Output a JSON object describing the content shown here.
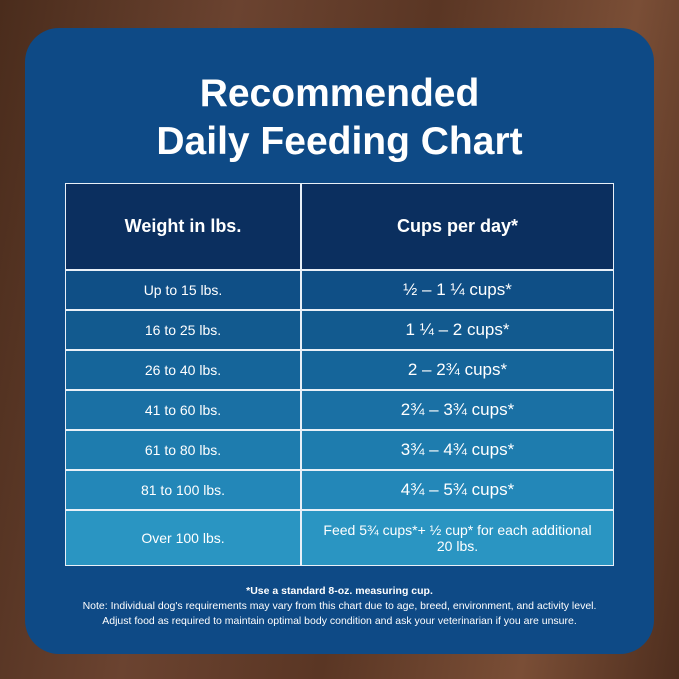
{
  "header": {
    "title_line1": "Recommended",
    "title_line2": "Daily Feeding Chart"
  },
  "table": {
    "columns": [
      "Weight in lbs.",
      "Cups per day*"
    ],
    "rows": [
      [
        "Up to 15 lbs.",
        "½ – 1 ¼ cups*"
      ],
      [
        "16 to 25 lbs.",
        "1 ¼ –  2 cups*"
      ],
      [
        "26 to 40 lbs.",
        "2 – 2¾ cups*"
      ],
      [
        "41 to 60 lbs.",
        "2¾ – 3¾ cups*"
      ],
      [
        "61 to 80 lbs.",
        "3¾ – 4¾ cups*"
      ],
      [
        "81 to 100 lbs.",
        "4¾ – 5¾ cups*"
      ],
      [
        "Over 100 lbs.",
        "Feed 5¾ cups*+ ½ cup* for each additional 20 lbs."
      ]
    ]
  },
  "footnotes": [
    "*Use a standard 8-oz. measuring cup.",
    "Note: Individual dog's requirements may vary from this chart due to age, breed, environment, and activity level.",
    "Adjust food as required to maintain optimal body condition and ask your veterinarian if you are unsure."
  ]
}
